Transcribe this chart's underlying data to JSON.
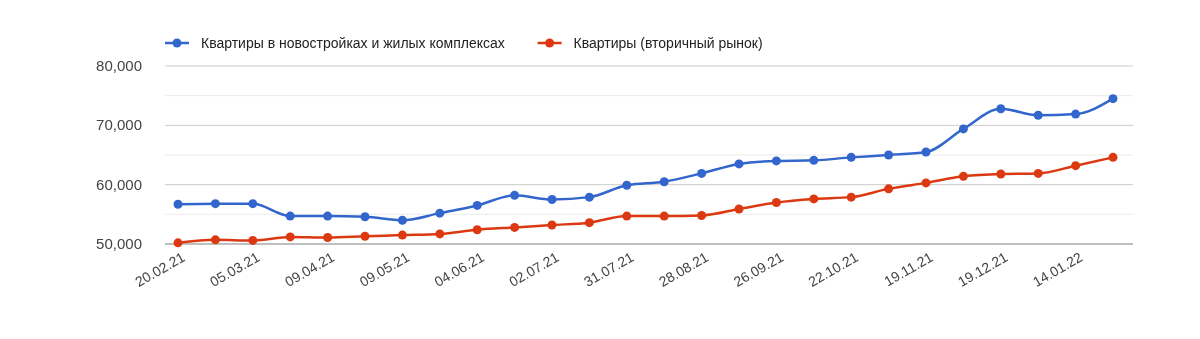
{
  "chart_data": {
    "type": "line",
    "categories": [
      "20.02.21",
      null,
      "05.03.21",
      null,
      "09.04.21",
      null,
      "09.05.21",
      null,
      "04.06.21",
      null,
      "02.07.21",
      null,
      "31.07.21",
      null,
      "28.08.21",
      null,
      "26.09.21",
      null,
      "22.10.21",
      null,
      "19.11.21",
      null,
      "19.12.21",
      null,
      "14.01.22",
      null
    ],
    "series": [
      {
        "name": "Квартиры в новостройках и жилых комплексах",
        "color": "#3366cc",
        "values": [
          56700,
          56800,
          56800,
          54700,
          54700,
          54600,
          54000,
          55200,
          56500,
          58200,
          57500,
          57900,
          59900,
          60500,
          61900,
          63500,
          64000,
          64100,
          64600,
          65000,
          65500,
          69400,
          72800,
          71700,
          71900,
          74500
        ]
      },
      {
        "name": "Квартиры (вторичный рынок)",
        "color": "#dc3912",
        "values": [
          50200,
          50700,
          50600,
          51200,
          51100,
          51300,
          51500,
          51700,
          52400,
          52800,
          53200,
          53600,
          54700,
          54700,
          54800,
          55900,
          57000,
          57600,
          57900,
          59300,
          60300,
          61400,
          61800,
          61900,
          63200,
          64600
        ]
      }
    ],
    "ylim": [
      50000,
      80000
    ],
    "yticks": [
      {
        "value": 50000,
        "label": "50,000"
      },
      {
        "value": 55000,
        "label": null
      },
      {
        "value": 60000,
        "label": "60,000"
      },
      {
        "value": 65000,
        "label": null
      },
      {
        "value": 70000,
        "label": "70,000"
      },
      {
        "value": 75000,
        "label": null
      },
      {
        "value": 80000,
        "label": "80,000"
      }
    ],
    "grid": "y",
    "legend": "top left",
    "marker": "circle",
    "line_style": "solid"
  }
}
